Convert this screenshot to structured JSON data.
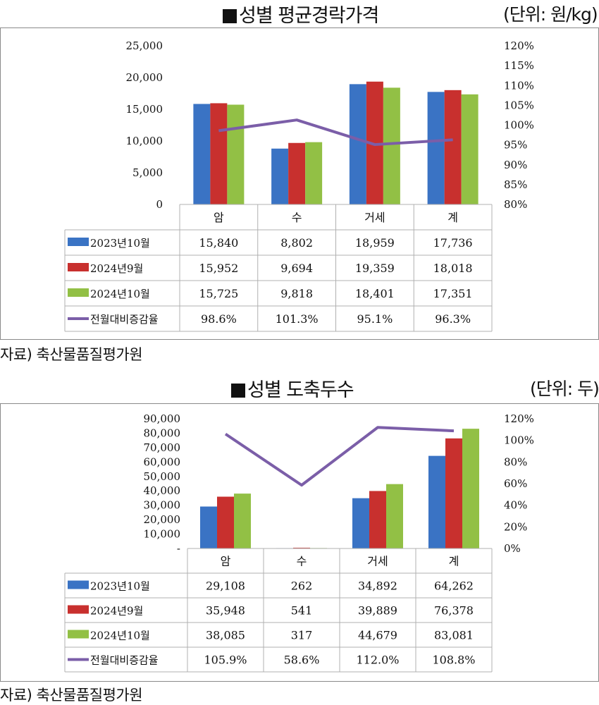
{
  "charts": [
    {
      "title": "성별 평균경락가격",
      "unit": "(단위: 원/kg)",
      "source": "자료) 축산물품질평가원"
    },
    {
      "title": "성별 도축두수",
      "unit": "(단위: 두)",
      "source": "자료) 축산물품질평가원"
    }
  ],
  "colors": {
    "s2023_10": "#3a73c4",
    "s2024_9": "#c8302e",
    "s2024_10": "#92c045",
    "ratio": "#7b5ea8"
  },
  "chart_data": [
    {
      "type": "bar",
      "title": "성별 평균경락가격",
      "categories": [
        "암",
        "수",
        "거세",
        "계"
      ],
      "series": [
        {
          "name": "2023년10월",
          "values": [
            15840,
            8802,
            18959,
            17736
          ],
          "labels": [
            "15,840",
            "8,802",
            "18,959",
            "17,736"
          ]
        },
        {
          "name": "2024년9월",
          "values": [
            15952,
            9694,
            19359,
            18018
          ],
          "labels": [
            "15,952",
            "9,694",
            "19,359",
            "18,018"
          ]
        },
        {
          "name": "2024년10월",
          "values": [
            15725,
            9818,
            18401,
            17351
          ],
          "labels": [
            "15,725",
            "9,818",
            "18,401",
            "17,351"
          ]
        }
      ],
      "line": {
        "name": "전월대비증감율",
        "values": [
          98.6,
          101.3,
          95.1,
          96.3
        ],
        "labels": [
          "98.6%",
          "101.3%",
          "95.1%",
          "96.3%"
        ]
      },
      "ylim": [
        0,
        25000
      ],
      "yticks": [
        "0",
        "5,000",
        "10,000",
        "15,000",
        "20,000",
        "25,000"
      ],
      "y2lim": [
        80,
        120
      ],
      "y2ticks": [
        "80%",
        "85%",
        "90%",
        "95%",
        "100%",
        "105%",
        "110%",
        "115%",
        "120%"
      ],
      "grid": false,
      "legend": "data-table"
    },
    {
      "type": "bar",
      "title": "성별 도축두수",
      "categories": [
        "암",
        "수",
        "거세",
        "계"
      ],
      "series": [
        {
          "name": "2023년10월",
          "values": [
            29108,
            262,
            34892,
            64262
          ],
          "labels": [
            "29,108",
            "262",
            "34,892",
            "64,262"
          ]
        },
        {
          "name": "2024년9월",
          "values": [
            35948,
            541,
            39889,
            76378
          ],
          "labels": [
            "35,948",
            "541",
            "39,889",
            "76,378"
          ]
        },
        {
          "name": "2024년10월",
          "values": [
            38085,
            317,
            44679,
            83081
          ],
          "labels": [
            "38,085",
            "317",
            "44,679",
            "83,081"
          ]
        }
      ],
      "line": {
        "name": "전월대비증감율",
        "values": [
          105.9,
          58.6,
          112.0,
          108.8
        ],
        "labels": [
          "105.9%",
          "58.6%",
          "112.0%",
          "108.8%"
        ]
      },
      "ylim": [
        0,
        90000
      ],
      "yticks": [
        "-",
        "10,000",
        "20,000",
        "30,000",
        "40,000",
        "50,000",
        "60,000",
        "70,000",
        "80,000",
        "90,000"
      ],
      "y2lim": [
        0,
        120
      ],
      "y2ticks": [
        "0%",
        "20%",
        "40%",
        "60%",
        "80%",
        "100%",
        "120%"
      ],
      "grid": false,
      "legend": "data-table"
    }
  ]
}
